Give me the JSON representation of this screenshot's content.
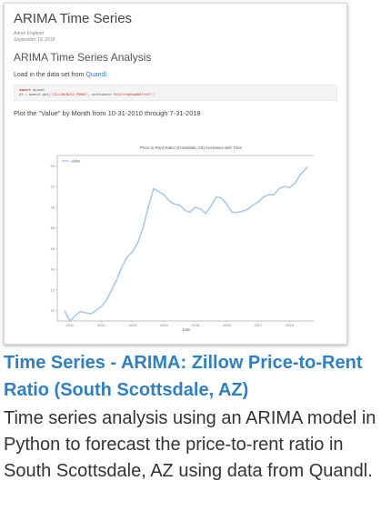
{
  "thumbnail": {
    "notebook_title": "ARIMA Time Series",
    "author": "Aaron England",
    "date": "September 19, 2018",
    "section_heading": "ARIMA Time Series Analysis",
    "load_text_prefix": "Load in the data set from ",
    "load_link": "Quandl.",
    "code_line1_kw": "import",
    "code_line1_rest": " quandl",
    "code_line2_prefix": "df = quandl.get(",
    "code_line2_str": "'ZILLOW/N252_PRRAH'",
    "code_line2_mid": ", authtoken=",
    "code_line2_str2": "'9aTpTvfgkhwmb8TfotV'",
    "code_line2_end": ")",
    "plot_text": "Plot the \"Value\" by Month from 10-31-2010 through 7-31-2018"
  },
  "chart_data": {
    "type": "line",
    "title": "Price to Rent Ratio (Scottsdale, AZ) Increases with Time",
    "xlabel": "Date",
    "ylabel": "",
    "legend": {
      "entries": [
        "Value"
      ],
      "placement": "top-left"
    },
    "x_ticks": [
      "2011",
      "2012",
      "2013",
      "2014",
      "2015",
      "2016",
      "2017",
      "2018"
    ],
    "y_ticks": [
      "10",
      "12",
      "14",
      "16",
      "18",
      "20",
      "22",
      "24"
    ],
    "xlim": [
      2010.6,
      2018.8
    ],
    "ylim": [
      9,
      25
    ],
    "series": [
      {
        "name": "Value",
        "color": "#aac9e8",
        "x": [
          2010.83,
          2011.0,
          2011.17,
          2011.33,
          2011.5,
          2011.67,
          2011.83,
          2012.0,
          2012.17,
          2012.33,
          2012.5,
          2012.67,
          2012.83,
          2013.0,
          2013.17,
          2013.33,
          2013.5,
          2013.67,
          2013.83,
          2014.0,
          2014.17,
          2014.33,
          2014.5,
          2014.67,
          2014.83,
          2015.0,
          2015.17,
          2015.33,
          2015.5,
          2015.67,
          2015.83,
          2016.0,
          2016.17,
          2016.33,
          2016.5,
          2016.67,
          2016.83,
          2017.0,
          2017.17,
          2017.33,
          2017.5,
          2017.67,
          2017.83,
          2018.0,
          2018.17,
          2018.33,
          2018.58
        ],
        "values": [
          10.0,
          9.0,
          9.5,
          9.9,
          9.8,
          9.7,
          10.0,
          10.4,
          11.0,
          12.0,
          13.0,
          14.3,
          15.2,
          15.7,
          16.6,
          18.0,
          20.0,
          21.8,
          21.5,
          21.2,
          20.6,
          20.3,
          20.2,
          19.7,
          19.5,
          20.0,
          19.8,
          19.4,
          20.1,
          21.0,
          20.9,
          20.3,
          19.5,
          19.5,
          19.6,
          19.8,
          20.2,
          20.5,
          21.0,
          21.2,
          21.2,
          21.8,
          22.0,
          21.9,
          22.3,
          23.1,
          23.9
        ]
      }
    ]
  },
  "caption": {
    "title": "Time Series - ARIMA: Zillow Price-to-Rent Ratio (South Scottsdale, AZ)",
    "description": "Time series analysis using an ARIMA model in Python to forecast the price-to-rent ratio in South Scottsdale, AZ using data from Quandl."
  }
}
